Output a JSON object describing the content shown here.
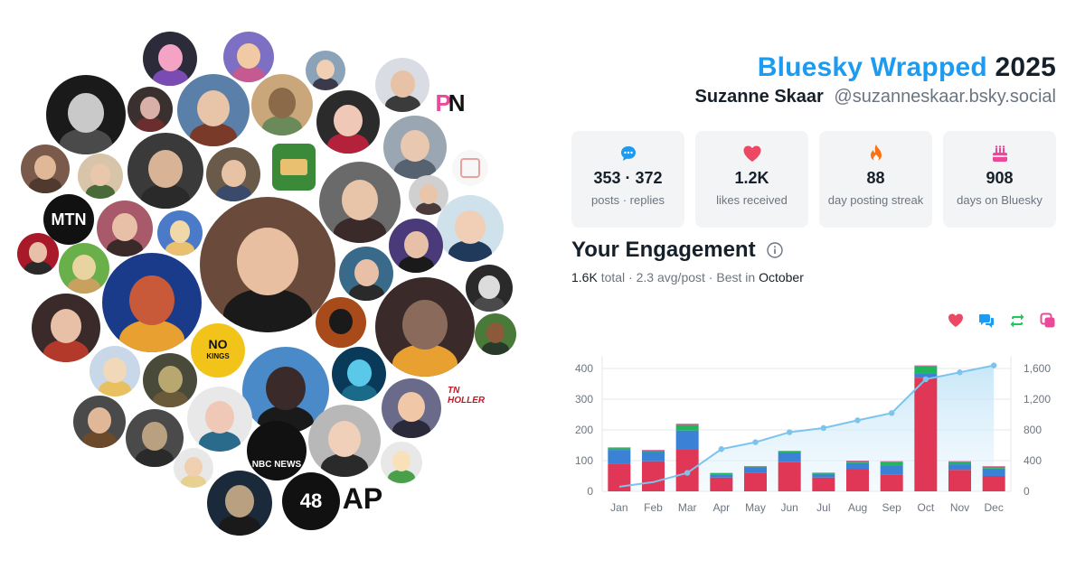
{
  "header": {
    "brand": "Bluesky Wrapped",
    "year": "2025",
    "display_name": "Suzanne Skaar",
    "handle": "@suzanneskaar.bsky.social"
  },
  "stats": [
    {
      "icon": "speech-bubble-icon",
      "value": "353 · 372",
      "label": "posts · replies",
      "color": "#1d9bf0"
    },
    {
      "icon": "heart-icon",
      "value": "1.2K",
      "label": "likes received",
      "color": "#ec4863"
    },
    {
      "icon": "flame-icon",
      "value": "88",
      "label": "day posting streak",
      "color": "#f97316"
    },
    {
      "icon": "cake-icon",
      "value": "908",
      "label": "days on Bluesky",
      "color": "#ec4899"
    }
  ],
  "engagement": {
    "title": "Your Engagement",
    "total_value": "1.6K",
    "total_word": "total",
    "separator": " · ",
    "avg": "2.3 avg/post",
    "best_prefix": "Best in",
    "best_month": "October",
    "legend": [
      {
        "icon": "heart-icon",
        "color": "#ec4863"
      },
      {
        "icon": "reply-bubbles-icon",
        "color": "#1d9bf0"
      },
      {
        "icon": "repost-icon",
        "color": "#22c55e"
      },
      {
        "icon": "quote-icon",
        "color": "#ec4899"
      }
    ]
  },
  "avatars": {
    "logo_texts": {
      "pn": "PN",
      "mtn": "MTN",
      "no_kings_1": "NO",
      "no_kings_2": "KINGS",
      "nbc": "NBC NEWS",
      "tn_holler": "TN HOLLER",
      "ap": "AP",
      "num_48": "48"
    }
  },
  "chart_data": {
    "type": "bar",
    "stacked": true,
    "categories": [
      "Jan",
      "Feb",
      "Mar",
      "Apr",
      "May",
      "Jun",
      "Jul",
      "Aug",
      "Sep",
      "Oct",
      "Nov",
      "Dec"
    ],
    "series": [
      {
        "values": [
          90,
          98,
          138,
          45,
          60,
          95,
          45,
          72,
          55,
          370,
          70,
          50
        ],
        "color": "#e03756"
      },
      {
        "values": [
          45,
          30,
          60,
          10,
          18,
          30,
          12,
          20,
          30,
          15,
          18,
          24
        ],
        "color": "#3b82d6"
      },
      {
        "values": [
          6,
          5,
          18,
          4,
          3,
          5,
          3,
          6,
          10,
          22,
          8,
          6
        ],
        "color": "#22b55e"
      },
      {
        "values": [
          2,
          2,
          4,
          1,
          1,
          2,
          1,
          2,
          3,
          3,
          2,
          2
        ],
        "color": "#ec4899"
      }
    ],
    "cumulative": {
      "values": [
        60,
        120,
        240,
        550,
        640,
        770,
        825,
        925,
        1020,
        1460,
        1550,
        1640
      ],
      "color": "#7cc4ee"
    },
    "ylim_left": [
      0,
      400
    ],
    "yticks_left": [
      0,
      100,
      200,
      300,
      400
    ],
    "ylim_right": [
      0,
      1600
    ],
    "yticks_right": [
      "0",
      "400",
      "800",
      "1,200",
      "1,600"
    ],
    "grid": true
  }
}
